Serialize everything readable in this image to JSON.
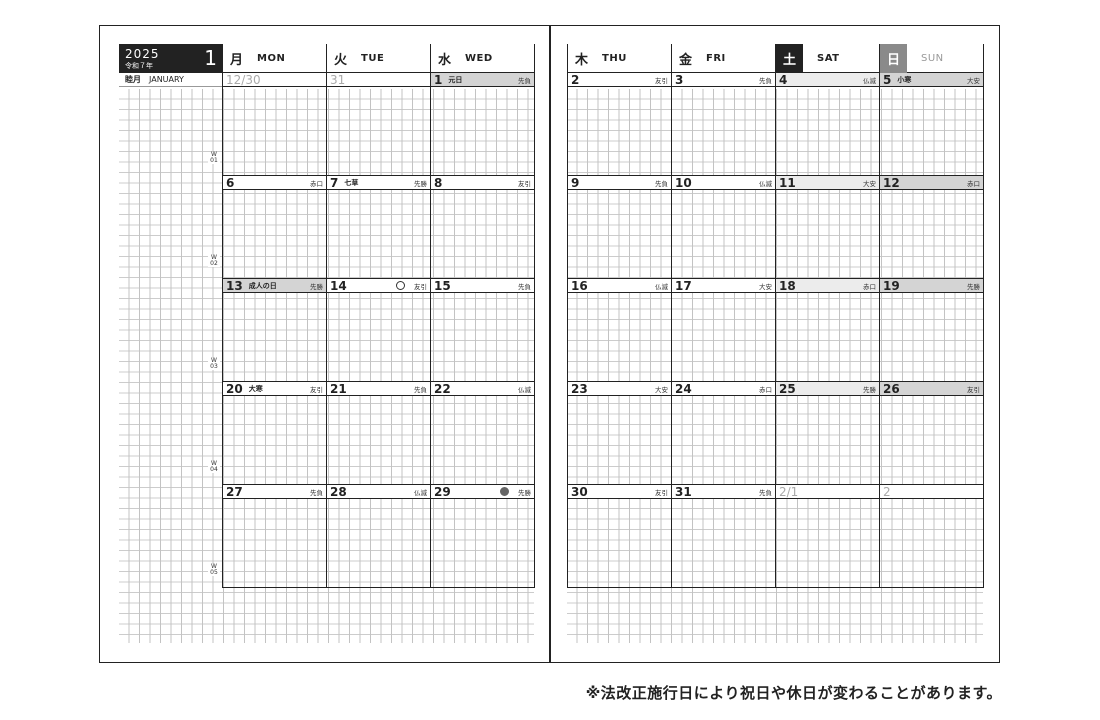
{
  "month_header": {
    "year": "2025",
    "wareki": "令和７年",
    "month": "1",
    "kyureki": "睦月",
    "month_en": "JANUARY"
  },
  "week_labels": [
    "W 01",
    "W 02",
    "W 03",
    "W 04",
    "W 05"
  ],
  "left_headers": [
    {
      "kanji": "月",
      "eng": "MON"
    },
    {
      "kanji": "火",
      "eng": "TUE"
    },
    {
      "kanji": "水",
      "eng": "WED"
    }
  ],
  "right_headers": [
    {
      "kanji": "木",
      "eng": "THU"
    },
    {
      "kanji": "金",
      "eng": "FRI"
    },
    {
      "kanji": "土",
      "eng": "SAT"
    },
    {
      "kanji": "日",
      "eng": "SUN"
    }
  ],
  "left_weeks": [
    [
      {
        "d": "12/30",
        "grey": true
      },
      {
        "d": "31",
        "grey": true
      },
      {
        "d": "1",
        "hol": "元日",
        "rk": "先負",
        "shade": true
      }
    ],
    [
      {
        "d": "6",
        "rk": "赤口"
      },
      {
        "d": "7",
        "hol": "七草",
        "rk": "先勝"
      },
      {
        "d": "8",
        "rk": "友引"
      }
    ],
    [
      {
        "d": "13",
        "hol": "成人の日",
        "rk": "先勝",
        "shade": true
      },
      {
        "d": "14",
        "rk": "友引",
        "moon": "new"
      },
      {
        "d": "15",
        "rk": "先負"
      }
    ],
    [
      {
        "d": "20",
        "hol": "大寒",
        "rk": "友引"
      },
      {
        "d": "21",
        "rk": "先負"
      },
      {
        "d": "22",
        "rk": "仏滅"
      }
    ],
    [
      {
        "d": "27",
        "rk": "先負"
      },
      {
        "d": "28",
        "rk": "仏滅"
      },
      {
        "d": "29",
        "rk": "先勝",
        "moon": "full"
      }
    ]
  ],
  "right_weeks": [
    [
      {
        "d": "2",
        "rk": "友引"
      },
      {
        "d": "3",
        "rk": "先負"
      },
      {
        "d": "4",
        "rk": "仏滅",
        "light": true
      },
      {
        "d": "5",
        "hol": "小寒",
        "rk": "大安",
        "shade": true
      }
    ],
    [
      {
        "d": "9",
        "rk": "先負"
      },
      {
        "d": "10",
        "rk": "仏滅"
      },
      {
        "d": "11",
        "rk": "大安",
        "light": true
      },
      {
        "d": "12",
        "rk": "赤口",
        "shade": true
      }
    ],
    [
      {
        "d": "16",
        "rk": "仏滅"
      },
      {
        "d": "17",
        "rk": "大安"
      },
      {
        "d": "18",
        "rk": "赤口",
        "light": true
      },
      {
        "d": "19",
        "rk": "先勝",
        "shade": true
      }
    ],
    [
      {
        "d": "23",
        "rk": "大安"
      },
      {
        "d": "24",
        "rk": "赤口"
      },
      {
        "d": "25",
        "rk": "先勝",
        "light": true
      },
      {
        "d": "26",
        "rk": "友引",
        "shade": true
      }
    ],
    [
      {
        "d": "30",
        "rk": "友引"
      },
      {
        "d": "31",
        "rk": "先負"
      },
      {
        "d": "2/1",
        "grey": true
      },
      {
        "d": "2",
        "grey": true
      }
    ]
  ],
  "footnote": "※法改正施行日により祝日や休日が変わることがあります。"
}
